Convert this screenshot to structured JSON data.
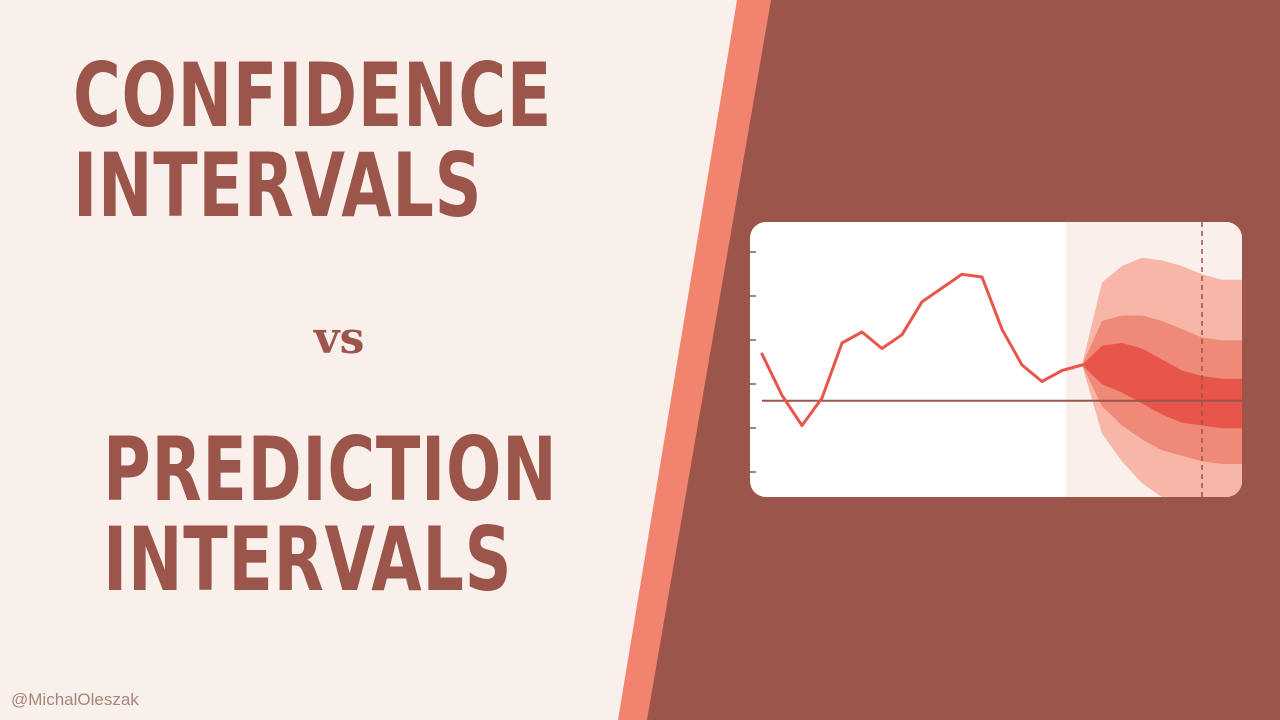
{
  "title_top": [
    "CONFIDENCE",
    "INTERVALS"
  ],
  "vs": "vs",
  "title_bottom": [
    "PREDICTION",
    "INTERVALS"
  ],
  "author_handle": "@MichalOleszak",
  "colors": {
    "background_light": "#faf0eb",
    "background_dark": "#9b554a",
    "accent_stripe": "#f2836e",
    "title_text": "#9b554a",
    "series_line": "#e8554a",
    "band_outer": "#f7b6a8",
    "band_middle": "#f08a78",
    "band_inner": "#e8554a",
    "forecast_shade": "#faefea"
  },
  "chart_data": {
    "type": "line",
    "title": "",
    "xlabel": "",
    "ylabel": "",
    "grid": false,
    "legend": "none",
    "x_range": [
      0,
      24
    ],
    "y_range": [
      -3.5,
      6.5
    ],
    "baseline": 0,
    "forecast_start": 14,
    "forecast_marker": 22,
    "observed": [
      {
        "x": 0,
        "y": 1.7
      },
      {
        "x": 1,
        "y": 0.2
      },
      {
        "x": 2,
        "y": -0.9
      },
      {
        "x": 3,
        "y": 0.1
      },
      {
        "x": 4,
        "y": 2.1
      },
      {
        "x": 5,
        "y": 2.5
      },
      {
        "x": 6,
        "y": 1.9
      },
      {
        "x": 7,
        "y": 2.4
      },
      {
        "x": 8,
        "y": 3.6
      },
      {
        "x": 9,
        "y": 4.1
      },
      {
        "x": 10,
        "y": 4.6
      },
      {
        "x": 11,
        "y": 4.5
      },
      {
        "x": 12,
        "y": 2.6
      },
      {
        "x": 13,
        "y": 1.3
      },
      {
        "x": 14,
        "y": 0.7
      },
      {
        "x": 15,
        "y": 1.1
      },
      {
        "x": 16,
        "y": 1.3
      }
    ],
    "forecast_bands": {
      "x": [
        16,
        17,
        18,
        19,
        20,
        21,
        22,
        23,
        24
      ],
      "inner_upper": [
        1.3,
        2.0,
        2.1,
        1.9,
        1.5,
        1.1,
        0.9,
        0.8,
        0.8
      ],
      "inner_lower": [
        1.3,
        0.6,
        0.3,
        -0.1,
        -0.5,
        -0.8,
        -0.9,
        -1.0,
        -1.0
      ],
      "middle_upper": [
        1.3,
        2.9,
        3.1,
        3.1,
        2.9,
        2.6,
        2.3,
        2.2,
        2.2
      ],
      "middle_lower": [
        1.3,
        -0.2,
        -0.9,
        -1.4,
        -1.8,
        -2.0,
        -2.2,
        -2.3,
        -2.3
      ],
      "outer_upper": [
        1.3,
        4.3,
        4.9,
        5.2,
        5.1,
        4.9,
        4.6,
        4.4,
        4.4
      ],
      "outer_lower": [
        1.3,
        -1.2,
        -2.2,
        -3.0,
        -3.5,
        -3.9,
        -4.1,
        -4.2,
        -4.2
      ]
    }
  }
}
